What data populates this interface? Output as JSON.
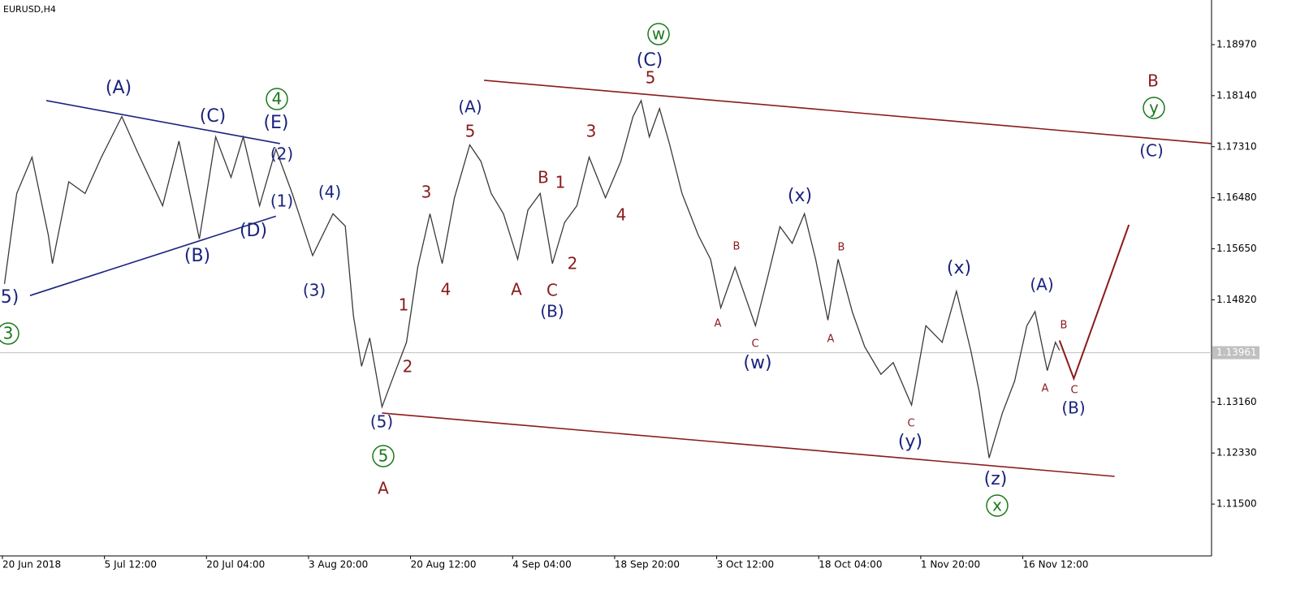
{
  "chart_data": {
    "type": "line",
    "title": "EURUSD,H4",
    "color": "#3a3a3a",
    "xlim": [
      0,
      11.85
    ],
    "ylim": [
      1.10657,
      1.19695
    ],
    "xticks": [
      {
        "value": 0,
        "label": "20 Jun 2018"
      },
      {
        "value": 1,
        "label": "5 Jul 12:00"
      },
      {
        "value": 2,
        "label": "20 Jul 04:00"
      },
      {
        "value": 3,
        "label": "3 Aug 20:00"
      },
      {
        "value": 4,
        "label": "20 Aug 12:00"
      },
      {
        "value": 5,
        "label": "4 Sep 04:00"
      },
      {
        "value": 6,
        "label": "18 Sep 20:00"
      },
      {
        "value": 7,
        "label": "3 Oct 12:00"
      },
      {
        "value": 8,
        "label": "18 Oct 04:00"
      },
      {
        "value": 9,
        "label": "1 Nov 20:00"
      },
      {
        "value": 10,
        "label": "16 Nov 12:00"
      }
    ],
    "yticks": [
      {
        "value": 1.1897,
        "label": "1.18970"
      },
      {
        "value": 1.1814,
        "label": "1.18140"
      },
      {
        "value": 1.1731,
        "label": "1.17310"
      },
      {
        "value": 1.1648,
        "label": "1.16480"
      },
      {
        "value": 1.1565,
        "label": "1.15650"
      },
      {
        "value": 1.1482,
        "label": "1.14820"
      },
      {
        "value": 1.1316,
        "label": "1.13160"
      },
      {
        "value": 1.1233,
        "label": "1.12330"
      },
      {
        "value": 1.115,
        "label": "1.11500"
      }
    ],
    "last_price": 1.13961,
    "x": [
      0.02,
      0.14,
      0.29,
      0.45,
      0.49,
      0.65,
      0.81,
      0.97,
      1.17,
      1.33,
      1.57,
      1.73,
      1.93,
      2.09,
      2.24,
      2.36,
      2.52,
      2.68,
      2.84,
      3.04,
      3.24,
      3.36,
      3.44,
      3.52,
      3.6,
      3.72,
      3.84,
      3.96,
      4.07,
      4.19,
      4.31,
      4.43,
      4.58,
      4.69,
      4.79,
      4.91,
      5.05,
      5.15,
      5.27,
      5.39,
      5.51,
      5.63,
      5.75,
      5.91,
      6.06,
      6.18,
      6.26,
      6.34,
      6.44,
      6.54,
      6.66,
      6.82,
      6.94,
      7.04,
      7.18,
      7.38,
      7.5,
      7.62,
      7.74,
      7.86,
      7.97,
      8.09,
      8.19,
      8.33,
      8.45,
      8.61,
      8.73,
      8.91,
      9.05,
      9.21,
      9.35,
      9.49,
      9.57,
      9.67,
      9.8,
      9.92,
      10.04,
      10.12,
      10.24,
      10.32,
      10.36
    ],
    "values": [
      1.1508,
      1.1655,
      1.1714,
      1.1587,
      1.1541,
      1.1674,
      1.1655,
      1.1714,
      1.178,
      1.172,
      1.1635,
      1.174,
      1.1581,
      1.1747,
      1.1681,
      1.1747,
      1.1635,
      1.1727,
      1.1655,
      1.1554,
      1.1622,
      1.1602,
      1.1456,
      1.1374,
      1.142,
      1.1308,
      1.1361,
      1.1413,
      1.1535,
      1.1622,
      1.1541,
      1.1648,
      1.1734,
      1.1707,
      1.1655,
      1.1622,
      1.1548,
      1.1628,
      1.1655,
      1.1541,
      1.1608,
      1.1635,
      1.1714,
      1.1648,
      1.1707,
      1.178,
      1.1806,
      1.1747,
      1.1793,
      1.1734,
      1.1655,
      1.1587,
      1.1548,
      1.1469,
      1.1535,
      1.144,
      1.1519,
      1.1601,
      1.1574,
      1.1622,
      1.1548,
      1.1449,
      1.1548,
      1.1462,
      1.1406,
      1.1361,
      1.138,
      1.1311,
      1.144,
      1.1413,
      1.1496,
      1.14,
      1.1335,
      1.1225,
      1.1298,
      1.135,
      1.144,
      1.1463,
      1.1367,
      1.1413,
      1.14
    ],
    "projection": {
      "color": "#8b1a1a",
      "x": [
        10.36,
        10.5,
        11.04
      ],
      "values": [
        1.1416,
        1.1354,
        1.1604
      ]
    },
    "trend_lines": [
      {
        "color": "#8b1a1a",
        "x": [
          4.72,
          11.85
        ],
        "values": [
          1.1839,
          1.1736
        ]
      },
      {
        "color": "#8b1a1a",
        "x": [
          3.72,
          10.9
        ],
        "values": [
          1.1298,
          1.1195
        ]
      },
      {
        "color": "#1a237e",
        "x": [
          0.43,
          2.72
        ],
        "values": [
          1.1806,
          1.1736
        ]
      },
      {
        "color": "#1a237e",
        "x": [
          0.27,
          2.68
        ],
        "values": [
          1.1489,
          1.1618
        ]
      }
    ],
    "annotations": [
      {
        "text": "5)",
        "color": "#1a237e"
      },
      {
        "text": "(A)",
        "color": "#1a237e"
      },
      {
        "text": "(C)",
        "color": "#1a237e"
      },
      {
        "text": "(E)",
        "color": "#1a237e"
      },
      {
        "text": "(2)",
        "color": "#1a237e"
      },
      {
        "text": "(1)",
        "color": "#1a237e"
      },
      {
        "text": "(D)",
        "color": "#1a237e"
      },
      {
        "text": "(B)",
        "color": "#1a237e"
      },
      {
        "text": "(4)",
        "color": "#1a237e"
      },
      {
        "text": "(3)",
        "color": "#1a237e"
      },
      {
        "text": "(5)",
        "color": "#1a237e"
      },
      {
        "text": "(A)",
        "color": "#1a237e"
      },
      {
        "text": "(B)",
        "color": "#1a237e"
      },
      {
        "text": "(C)",
        "color": "#1a237e"
      },
      {
        "text": "(x)",
        "color": "#1a237e"
      },
      {
        "text": "(w)",
        "color": "#1a237e"
      },
      {
        "text": "(x)",
        "color": "#1a237e"
      },
      {
        "text": "(y)",
        "color": "#1a237e"
      },
      {
        "text": "(z)",
        "color": "#1a237e"
      },
      {
        "text": "(A)",
        "color": "#1a237e"
      },
      {
        "text": "(B)",
        "color": "#1a237e"
      },
      {
        "text": "(C)",
        "color": "#1a237e"
      },
      {
        "text": "3",
        "color": "#1b7a1b",
        "circled": true
      },
      {
        "text": "4",
        "color": "#1b7a1b",
        "circled": true
      },
      {
        "text": "5",
        "color": "#1b7a1b",
        "circled": true
      },
      {
        "text": "w",
        "color": "#1b7a1b",
        "circled": true
      },
      {
        "text": "x",
        "color": "#1b7a1b",
        "circled": true
      },
      {
        "text": "y",
        "color": "#1b7a1b",
        "circled": true
      },
      {
        "text": "A",
        "color": "#8b1a1a"
      },
      {
        "text": "1",
        "color": "#8b1a1a"
      },
      {
        "text": "2",
        "color": "#8b1a1a"
      },
      {
        "text": "3",
        "color": "#8b1a1a"
      },
      {
        "text": "4",
        "color": "#8b1a1a"
      },
      {
        "text": "5",
        "color": "#8b1a1a"
      },
      {
        "text": "B",
        "color": "#8b1a1a"
      },
      {
        "text": "1",
        "color": "#8b1a1a"
      },
      {
        "text": "2",
        "color": "#8b1a1a"
      },
      {
        "text": "A",
        "color": "#8b1a1a"
      },
      {
        "text": "C",
        "color": "#8b1a1a"
      },
      {
        "text": "3",
        "color": "#8b1a1a"
      },
      {
        "text": "4",
        "color": "#8b1a1a"
      },
      {
        "text": "5",
        "color": "#8b1a1a"
      },
      {
        "text": "B",
        "color": "#8b1a1a"
      },
      {
        "text": "A",
        "color": "#8b1a1a"
      },
      {
        "text": "B",
        "color": "#8b1a1a"
      },
      {
        "text": "C",
        "color": "#8b1a1a"
      },
      {
        "text": "B",
        "color": "#8b1a1a"
      },
      {
        "text": "A",
        "color": "#8b1a1a"
      },
      {
        "text": "C",
        "color": "#8b1a1a"
      },
      {
        "text": "A",
        "color": "#8b1a1a"
      },
      {
        "text": "B",
        "color": "#8b1a1a"
      },
      {
        "text": "C",
        "color": "#8b1a1a"
      }
    ]
  }
}
